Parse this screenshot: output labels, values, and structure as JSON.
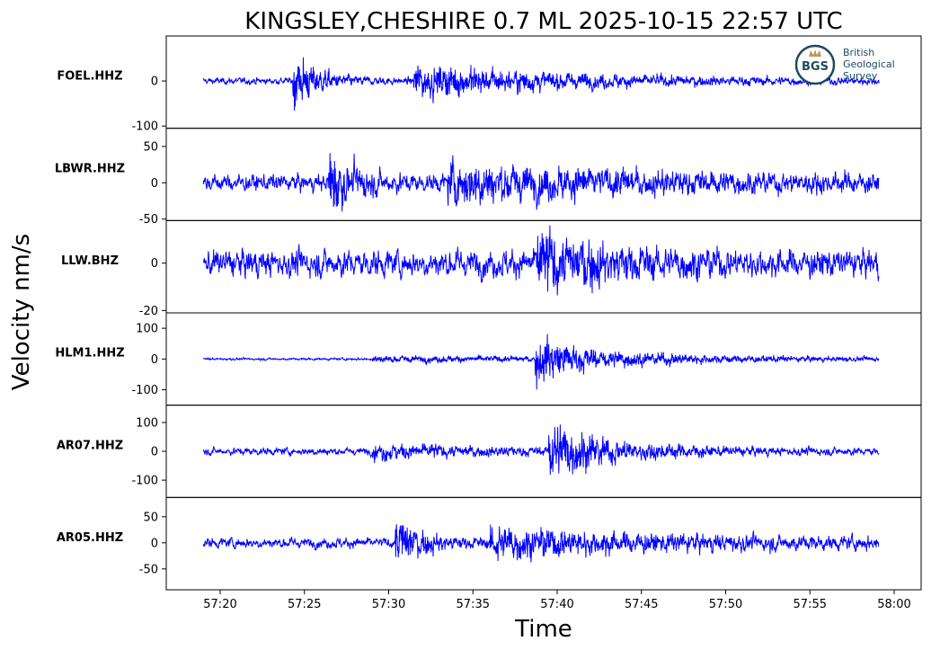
{
  "chart_data": {
    "type": "line",
    "title": "KINGSLEY,CHESHIRE 0.7 ML   2025-10-15 22:57 UTC",
    "xlabel": "Time",
    "ylabel": "Velocity nm/s",
    "x_ticks": [
      "57:20",
      "57:25",
      "57:30",
      "57:35",
      "57:40",
      "57:45",
      "57:50",
      "57:55",
      "58:00"
    ],
    "x_tick_seconds": [
      0,
      5,
      10,
      15,
      20,
      25,
      30,
      35,
      40
    ],
    "xlim_seconds": [
      -3.2,
      41.6
    ],
    "x_start_label": "57:20",
    "trace_span_seconds": [
      -1.0,
      39.1
    ],
    "line_color": "#0000ff",
    "grid": false,
    "series": [
      {
        "name": "FOEL.HHZ",
        "ylim": [
          -105,
          100
        ],
        "yticks": [
          0,
          -100
        ],
        "ytick_labels": [
          "0",
          "-100"
        ],
        "noise": 8,
        "events": [
          {
            "t": 4.3,
            "amp": 95,
            "decay": 1.5,
            "freq": 3.0
          },
          {
            "t": 11.5,
            "amp": 55,
            "decay": 9,
            "freq": 2.0
          }
        ]
      },
      {
        "name": "LBWR.HHZ",
        "ylim": [
          -52,
          75
        ],
        "yticks": [
          50,
          0,
          -50
        ],
        "ytick_labels": [
          "50",
          "0",
          "-50"
        ],
        "noise": 13,
        "events": [
          {
            "t": 6.4,
            "amp": 68,
            "decay": 1.5,
            "freq": 3.0
          },
          {
            "t": 13.5,
            "amp": 36,
            "decay": 12,
            "freq": 2.0
          }
        ]
      },
      {
        "name": "LLW.BHZ",
        "ylim": [
          -21,
          18
        ],
        "yticks": [
          0,
          -20
        ],
        "ytick_labels": [
          "0",
          "-20"
        ],
        "noise": 6.5,
        "events": [
          {
            "t": 18.8,
            "amp": 18,
            "decay": 4,
            "freq": 2.0
          }
        ]
      },
      {
        "name": "HLM1.HHZ",
        "ylim": [
          -150,
          150
        ],
        "yticks": [
          100,
          0,
          -100
        ],
        "ytick_labels": [
          "100",
          "0",
          "-100"
        ],
        "noise": 4,
        "events": [
          {
            "t": 9.0,
            "amp": 14,
            "decay": 22,
            "freq": 2.0
          },
          {
            "t": 18.7,
            "amp": 140,
            "decay": 1.2,
            "freq": 3.0
          },
          {
            "t": 19.3,
            "amp": 55,
            "decay": 7,
            "freq": 2.0
          }
        ]
      },
      {
        "name": "AR07.HHZ",
        "ylim": [
          -160,
          160
        ],
        "yticks": [
          100,
          0,
          -100
        ],
        "ytick_labels": [
          "100",
          "0",
          "-100"
        ],
        "noise": 14,
        "events": [
          {
            "t": 9.0,
            "amp": 35,
            "decay": 7,
            "freq": 2.0
          },
          {
            "t": 19.5,
            "amp": 135,
            "decay": 4,
            "freq": 2.0
          }
        ]
      },
      {
        "name": "AR05.HHZ",
        "ylim": [
          -90,
          87
        ],
        "yticks": [
          50,
          0,
          -50
        ],
        "ytick_labels": [
          "50",
          "0",
          "-50"
        ],
        "noise": 11,
        "events": [
          {
            "t": 10.4,
            "amp": 80,
            "decay": 1.5,
            "freq": 3.0
          },
          {
            "t": 16.0,
            "amp": 40,
            "decay": 12,
            "freq": 2.0
          }
        ]
      }
    ]
  },
  "logo": {
    "abbreviation": "BGS",
    "name_line1": "British",
    "name_line2": "Geological",
    "name_line3": "Survey",
    "ring_color": "#1c4b5c",
    "accent_color": "#b79a5e"
  }
}
